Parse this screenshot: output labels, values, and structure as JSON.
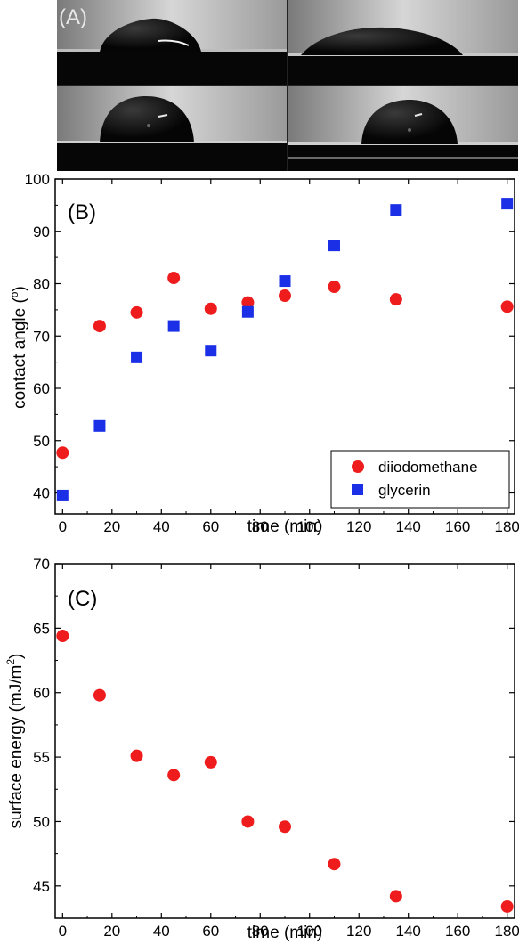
{
  "panel_labels": {
    "a": "(A)",
    "b": "(B)",
    "c": "(C)"
  },
  "colors": {
    "diiodomethane": "#ee1c1c",
    "glycerin": "#1a2fe6"
  },
  "chart_data": [
    {
      "type": "scatter",
      "panel": "(B)",
      "xlabel": "time (min)",
      "ylabel": "contact angle (",
      "ylabel_superscript": "o",
      "ylabel_close": ")",
      "xlim": [
        -3,
        183
      ],
      "ylim": [
        36,
        100
      ],
      "xticks": [
        0,
        20,
        40,
        60,
        80,
        100,
        120,
        140,
        160,
        180
      ],
      "yticks": [
        40,
        50,
        60,
        70,
        80,
        90,
        100
      ],
      "legend_position": "bottom-right",
      "series": [
        {
          "name": "diiodomethane",
          "marker": "circle",
          "color": "#ee1c1c",
          "x": [
            0,
            15,
            30,
            45,
            60,
            75,
            90,
            110,
            135,
            180
          ],
          "y": [
            47.7,
            71.9,
            74.5,
            81.1,
            75.2,
            76.4,
            77.7,
            79.4,
            77.0,
            75.6
          ]
        },
        {
          "name": "glycerin",
          "marker": "square",
          "color": "#1a2fe6",
          "x": [
            0,
            15,
            30,
            45,
            60,
            75,
            90,
            110,
            135,
            180
          ],
          "y": [
            39.5,
            52.8,
            65.9,
            71.9,
            67.2,
            74.6,
            80.5,
            87.3,
            94.1,
            95.3
          ]
        }
      ]
    },
    {
      "type": "scatter",
      "panel": "(C)",
      "xlabel": "time (min)",
      "ylabel": "surface energy (mJ/m",
      "ylabel_superscript": "2",
      "ylabel_close": ")",
      "xlim": [
        -3,
        183
      ],
      "ylim": [
        42.5,
        70
      ],
      "xticks": [
        0,
        20,
        40,
        60,
        80,
        100,
        120,
        140,
        160,
        180
      ],
      "yticks": [
        45,
        50,
        55,
        60,
        65,
        70
      ],
      "series": [
        {
          "marker": "circle",
          "color": "#ee1c1c",
          "x": [
            0,
            15,
            30,
            45,
            60,
            75,
            90,
            110,
            135,
            180
          ],
          "y": [
            64.4,
            59.8,
            55.1,
            53.6,
            54.6,
            50.0,
            49.6,
            46.7,
            44.2,
            43.4
          ]
        }
      ]
    }
  ]
}
